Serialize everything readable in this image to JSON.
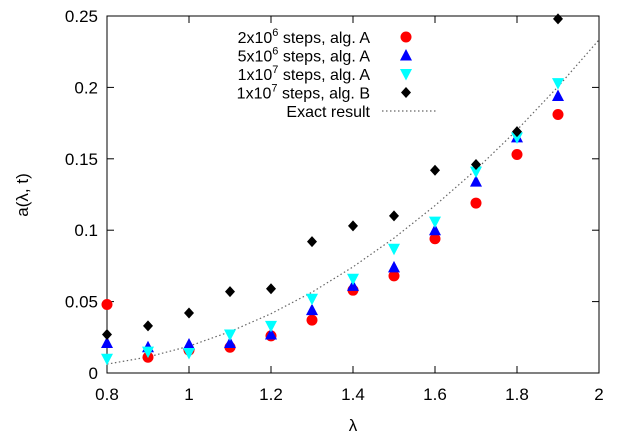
{
  "chart_data": {
    "type": "scatter",
    "xlabel": "λ",
    "ylabel": "a(λ, t)",
    "xlim": [
      0.8,
      2
    ],
    "ylim": [
      0,
      0.25
    ],
    "xticks": [
      "0.8",
      "1",
      "1.2",
      "1.4",
      "1.6",
      "1.8",
      "2"
    ],
    "yticks": [
      "0",
      "0.05",
      "0.1",
      "0.15",
      "0.2",
      "0.25"
    ],
    "legend_position": "top-left",
    "grid": false,
    "series": [
      {
        "name_parts": [
          "2x10",
          "6",
          " steps, alg. A"
        ],
        "marker": "circle",
        "color": "#ff0000",
        "x": [
          0.8,
          0.9,
          1.0,
          1.1,
          1.2,
          1.3,
          1.4,
          1.5,
          1.6,
          1.7,
          1.8,
          1.9
        ],
        "y": [
          0.048,
          0.011,
          0.016,
          0.018,
          0.026,
          0.037,
          0.058,
          0.068,
          0.094,
          0.119,
          0.153,
          0.181
        ]
      },
      {
        "name_parts": [
          "5x10",
          "6",
          " steps, alg. A"
        ],
        "marker": "triangle-up",
        "color": "#0000ff",
        "x": [
          0.8,
          0.9,
          1.0,
          1.1,
          1.2,
          1.3,
          1.4,
          1.5,
          1.6,
          1.7,
          1.8,
          1.9
        ],
        "y": [
          0.021,
          0.018,
          0.02,
          0.021,
          0.027,
          0.044,
          0.061,
          0.074,
          0.1,
          0.134,
          0.165,
          0.194
        ]
      },
      {
        "name_parts": [
          "1x10",
          "7",
          " steps, alg. A"
        ],
        "marker": "triangle-down",
        "color": "#00ffff",
        "x": [
          0.8,
          0.9,
          1.0,
          1.1,
          1.2,
          1.3,
          1.4,
          1.5,
          1.6,
          1.7,
          1.8,
          1.9
        ],
        "y": [
          0.01,
          0.015,
          0.014,
          0.027,
          0.033,
          0.052,
          0.066,
          0.087,
          0.106,
          0.141,
          0.165,
          0.203
        ]
      },
      {
        "name_parts": [
          "1x10",
          "7",
          " steps, alg. B"
        ],
        "marker": "diamond",
        "color": "#000000",
        "x": [
          0.8,
          0.9,
          1.0,
          1.1,
          1.2,
          1.3,
          1.4,
          1.5,
          1.6,
          1.7,
          1.8,
          1.9
        ],
        "y": [
          0.027,
          0.033,
          0.042,
          0.057,
          0.059,
          0.092,
          0.103,
          0.11,
          0.142,
          0.146,
          0.169,
          0.248
        ]
      }
    ],
    "line": {
      "name": "Exact result",
      "style": "dotted",
      "color": "#666666",
      "x": [
        0.8,
        0.9,
        1.0,
        1.1,
        1.2,
        1.3,
        1.4,
        1.5,
        1.6,
        1.7,
        1.8,
        1.9,
        2.0
      ],
      "y": [
        0.0062,
        0.0112,
        0.0188,
        0.0289,
        0.0415,
        0.0566,
        0.0743,
        0.0945,
        0.1172,
        0.1424,
        0.1702,
        0.2005,
        0.2333
      ]
    }
  }
}
